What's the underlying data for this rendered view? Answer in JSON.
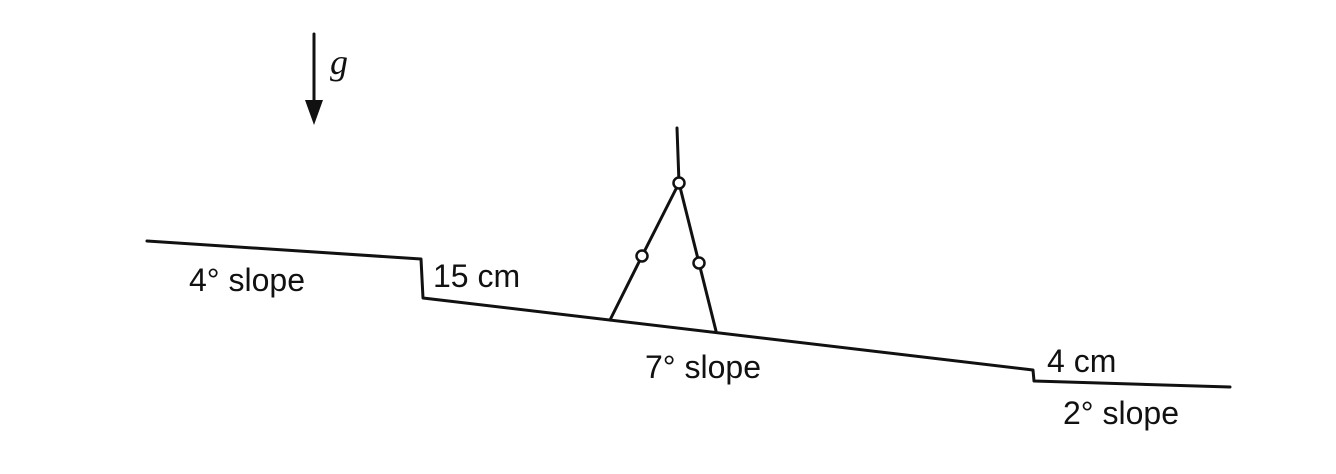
{
  "gravity": {
    "label": "g",
    "icon": "down-arrow-icon"
  },
  "segments": {
    "left": {
      "slope_label": "4° slope"
    },
    "middle": {
      "slope_label": "7° slope"
    },
    "right": {
      "slope_label": "2° slope"
    }
  },
  "steps": {
    "upper": {
      "height_label": "15 cm"
    },
    "lower": {
      "height_label": "4 cm"
    }
  },
  "walker": {
    "icon": "passive-walker-legs-icon"
  },
  "colors": {
    "ink": "#111111",
    "background": "#ffffff"
  }
}
